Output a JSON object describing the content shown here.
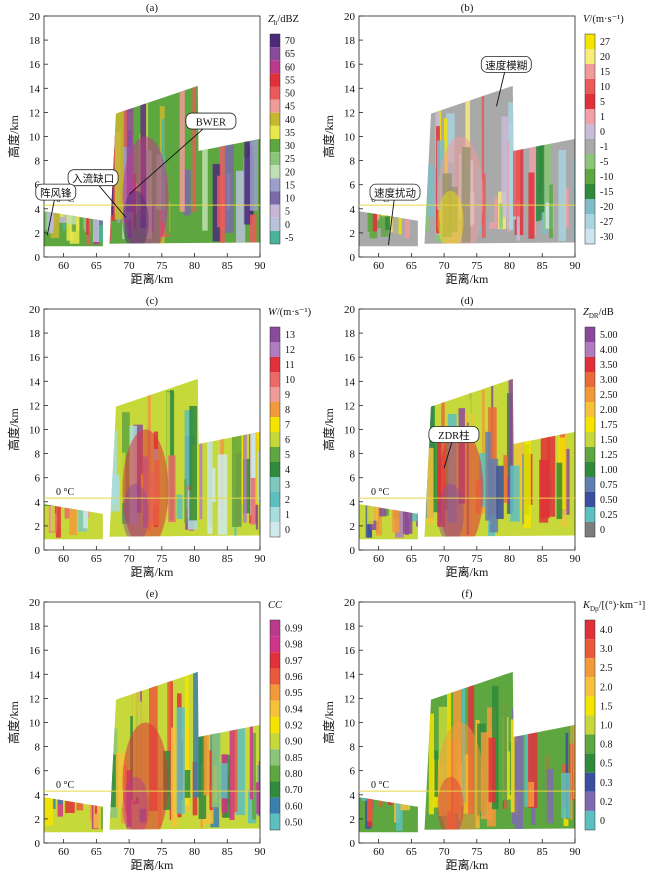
{
  "figure": {
    "zero_deg_label": "0 °C",
    "xlabel": "距离/km",
    "ylabel": "高度/km",
    "x_ticks": [
      "60",
      "65",
      "70",
      "75",
      "80",
      "85",
      "90"
    ],
    "y_ticks": [
      "0",
      "2",
      "4",
      "6",
      "8",
      "10",
      "12",
      "14",
      "16",
      "18",
      "20"
    ]
  },
  "chart_data": [
    {
      "type": "heatmap",
      "panel": "(a)",
      "title": "(a)",
      "xlabel": "距离/km",
      "ylabel": "高度/km",
      "xlim": [
        57,
        90
      ],
      "ylim": [
        0,
        20
      ],
      "colorbar_title": "Zh/dBZ",
      "colorbar_title_base": "Z",
      "colorbar_title_sub": "h",
      "colorbar_title_unit": "/dBZ",
      "levels": [
        "70",
        "65",
        "60",
        "55",
        "50",
        "45",
        "40",
        "35",
        "30",
        "25",
        "20",
        "15",
        "10",
        "5",
        "0",
        "-5"
      ],
      "colors": [
        "#4b2a7a",
        "#8a4a9c",
        "#b93a8c",
        "#e0303a",
        "#ea5a5a",
        "#f19a9a",
        "#c6b82e",
        "#e8e84a",
        "#5ea63f",
        "#8cc47a",
        "#bfe0b3",
        "#9aa0c8",
        "#7a6aa8",
        "#c8b6d6",
        "#b9c2dd",
        "#4ab49a"
      ],
      "zero_deg_height": 4.3,
      "annotations": [
        "BWER",
        "入流缺口",
        "阵风锋"
      ]
    },
    {
      "type": "heatmap",
      "panel": "(b)",
      "title": "(b)",
      "xlabel": "距离/km",
      "ylabel": "高度/km",
      "xlim": [
        57,
        90
      ],
      "ylim": [
        0,
        20
      ],
      "colorbar_title": "V/(m·s-1)",
      "colorbar_title_base": "V",
      "colorbar_title_sub": "",
      "colorbar_title_unit": "/(m·s⁻¹)",
      "levels": [
        "27",
        "20",
        "15",
        "10",
        "5",
        "1",
        "0",
        "-1",
        "-5",
        "-10",
        "-15",
        "-20",
        "-27",
        "-30"
      ],
      "colors": [
        "#f5e400",
        "#f8ec7a",
        "#f19a9a",
        "#ea5a5a",
        "#e0303a",
        "#f1a0a8",
        "#c9bcd8",
        "#a9a9a9",
        "#8cc47a",
        "#5ea63f",
        "#2f8a3c",
        "#7fbcc8",
        "#a9d4e0",
        "#cde6ee"
      ],
      "zero_deg_height": 4.3,
      "annotations": [
        "速度模糊",
        "速度扰动"
      ]
    },
    {
      "type": "heatmap",
      "panel": "(c)",
      "title": "(c)",
      "xlabel": "距离/km",
      "ylabel": "高度/km",
      "xlim": [
        57,
        90
      ],
      "ylim": [
        0,
        20
      ],
      "colorbar_title": "W/(m·s-1)",
      "colorbar_title_base": "W",
      "colorbar_title_sub": "",
      "colorbar_title_unit": "/(m·s⁻¹)",
      "levels": [
        "13",
        "12",
        "11",
        "10",
        "9",
        "8",
        "7",
        "6",
        "5",
        "4",
        "3",
        "2",
        "1",
        "0"
      ],
      "colors": [
        "#8a4a9c",
        "#b07bbf",
        "#e0303a",
        "#ea6a6a",
        "#f19a9a",
        "#f29a3a",
        "#f5e400",
        "#c7d83a",
        "#5ea63f",
        "#2f8a3c",
        "#7fc8c0",
        "#5cc0c0",
        "#a9dcdc",
        "#cfeaea"
      ],
      "zero_deg_height": 4.3,
      "annotations": []
    },
    {
      "type": "heatmap",
      "panel": "(d)",
      "title": "(d)",
      "xlabel": "距离/km",
      "ylabel": "高度/km",
      "xlim": [
        57,
        90
      ],
      "ylim": [
        0,
        20
      ],
      "colorbar_title": "ZDR/dB",
      "colorbar_title_base": "Z",
      "colorbar_title_sub": "DR",
      "colorbar_title_unit": "/dB",
      "levels": [
        "5.00",
        "4.00",
        "3.50",
        "3.00",
        "2.50",
        "2.00",
        "1.75",
        "1.50",
        "1.25",
        "1.00",
        "0.75",
        "0.50",
        "0.25",
        "0"
      ],
      "colors": [
        "#8a4a9c",
        "#b07bbf",
        "#e0303a",
        "#ea6a3a",
        "#f29a3a",
        "#f5c23a",
        "#f5e400",
        "#c7d83a",
        "#5ea63f",
        "#2f8a3c",
        "#5f7fae",
        "#3b4fa0",
        "#5cc0c0",
        "#7d7d7d"
      ],
      "zero_deg_height": 4.3,
      "annotations": [
        "ZDR柱"
      ]
    },
    {
      "type": "heatmap",
      "panel": "(e)",
      "title": "(e)",
      "xlabel": "距离/km",
      "ylabel": "高度/km",
      "xlim": [
        57,
        90
      ],
      "ylim": [
        0,
        20
      ],
      "colorbar_title": "CC",
      "colorbar_title_base": "CC",
      "colorbar_title_sub": "",
      "colorbar_title_unit": "",
      "levels": [
        "0.99",
        "0.98",
        "0.97",
        "0.96",
        "0.95",
        "0.94",
        "0.92",
        "0.90",
        "0.85",
        "0.80",
        "0.70",
        "0.60",
        "0.50"
      ],
      "colors": [
        "#b93a8c",
        "#d0348a",
        "#e0303a",
        "#ea5a3a",
        "#f29a3a",
        "#f5c23a",
        "#f5e400",
        "#c7d83a",
        "#8cc47a",
        "#5ea63f",
        "#2f8a3c",
        "#3b7fae",
        "#5cc0c0"
      ],
      "zero_deg_height": 4.3,
      "annotations": []
    },
    {
      "type": "heatmap",
      "panel": "(f)",
      "title": "(f)",
      "xlabel": "距离/km",
      "ylabel": "高度/km",
      "xlim": [
        57,
        90
      ],
      "ylim": [
        0,
        20
      ],
      "colorbar_title": "KDP/[(°)·km-1]",
      "colorbar_title_base": "K",
      "colorbar_title_sub": "Dp",
      "colorbar_title_unit": "/[(°)·km⁻¹]",
      "levels": [
        "4.0",
        "3.0",
        "2.5",
        "2.0",
        "1.5",
        "1.0",
        "0.8",
        "0.5",
        "0.3",
        "0.2",
        "0"
      ],
      "colors": [
        "#e0303a",
        "#ea5a3a",
        "#f29a3a",
        "#f5c23a",
        "#f5e400",
        "#c7d83a",
        "#5ea63f",
        "#2f8a3c",
        "#3b4fa0",
        "#7d6ab0",
        "#5cc0c0"
      ],
      "zero_deg_height": 4.3,
      "annotations": []
    }
  ]
}
